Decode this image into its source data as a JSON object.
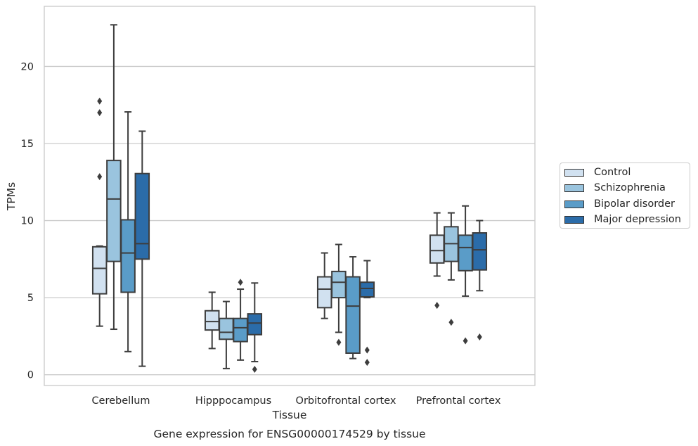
{
  "chart_data": {
    "type": "box",
    "title": "Gene expression for ENSG00000174529 by tissue",
    "xlabel": "Tissue",
    "ylabel": "TPMs",
    "ylim": [
      -0.7,
      23.9
    ],
    "yticks": [
      0,
      5,
      10,
      15,
      20
    ],
    "grid": "horizontal",
    "legend_placement": "right, outside plot",
    "categories": [
      "Cerebellum",
      "Hipppocampus",
      "Orbitofrontal cortex",
      "Prefrontal cortex"
    ],
    "series": [
      {
        "name": "Control",
        "color": "#d1e1f0",
        "boxes": [
          {
            "whislo": 3.15,
            "q1": 5.25,
            "med": 6.9,
            "q3": 8.3,
            "whishi": 8.35,
            "fliers": [
              12.85,
              17.0,
              17.75
            ]
          },
          {
            "whislo": 1.7,
            "q1": 2.9,
            "med": 3.45,
            "q3": 4.15,
            "whishi": 5.35,
            "fliers": []
          },
          {
            "whislo": 3.65,
            "q1": 4.35,
            "med": 5.55,
            "q3": 6.35,
            "whishi": 7.9,
            "fliers": []
          },
          {
            "whislo": 6.4,
            "q1": 7.25,
            "med": 8.05,
            "q3": 9.05,
            "whishi": 10.5,
            "fliers": [
              4.5
            ]
          }
        ]
      },
      {
        "name": "Schizophrenia",
        "color": "#9ac4de",
        "boxes": [
          {
            "whislo": 2.95,
            "q1": 7.35,
            "med": 11.4,
            "q3": 13.9,
            "whishi": 22.7,
            "fliers": []
          },
          {
            "whislo": 0.4,
            "q1": 2.3,
            "med": 2.75,
            "q3": 3.65,
            "whishi": 4.75,
            "fliers": []
          },
          {
            "whislo": 2.75,
            "q1": 5.0,
            "med": 6.0,
            "q3": 6.7,
            "whishi": 8.45,
            "fliers": [
              2.1
            ]
          },
          {
            "whislo": 6.15,
            "q1": 7.35,
            "med": 8.5,
            "q3": 9.6,
            "whishi": 10.5,
            "fliers": [
              3.4
            ]
          }
        ]
      },
      {
        "name": "Bipolar disorder",
        "color": "#5a9cc8",
        "boxes": [
          {
            "whislo": 1.5,
            "q1": 5.35,
            "med": 7.9,
            "q3": 10.05,
            "whishi": 17.05,
            "fliers": []
          },
          {
            "whislo": 0.95,
            "q1": 2.15,
            "med": 3.05,
            "q3": 3.65,
            "whishi": 5.55,
            "fliers": [
              6.0
            ]
          },
          {
            "whislo": 1.05,
            "q1": 1.4,
            "med": 4.45,
            "q3": 6.35,
            "whishi": 7.65,
            "fliers": []
          },
          {
            "whislo": 5.1,
            "q1": 6.75,
            "med": 8.25,
            "q3": 9.05,
            "whishi": 10.95,
            "fliers": [
              2.2
            ]
          }
        ]
      },
      {
        "name": "Major depression",
        "color": "#2b6ca9",
        "boxes": [
          {
            "whislo": 0.55,
            "q1": 7.5,
            "med": 8.5,
            "q3": 13.05,
            "whishi": 15.8,
            "fliers": []
          },
          {
            "whislo": 0.85,
            "q1": 2.6,
            "med": 3.35,
            "q3": 3.95,
            "whishi": 5.95,
            "fliers": [
              0.35
            ]
          },
          {
            "whislo": 5.0,
            "q1": 5.05,
            "med": 5.6,
            "q3": 6.0,
            "whishi": 7.4,
            "fliers": [
              1.6,
              0.8
            ]
          },
          {
            "whislo": 5.45,
            "q1": 6.8,
            "med": 8.1,
            "q3": 9.2,
            "whishi": 10.0,
            "fliers": [
              2.45
            ]
          }
        ]
      }
    ]
  }
}
